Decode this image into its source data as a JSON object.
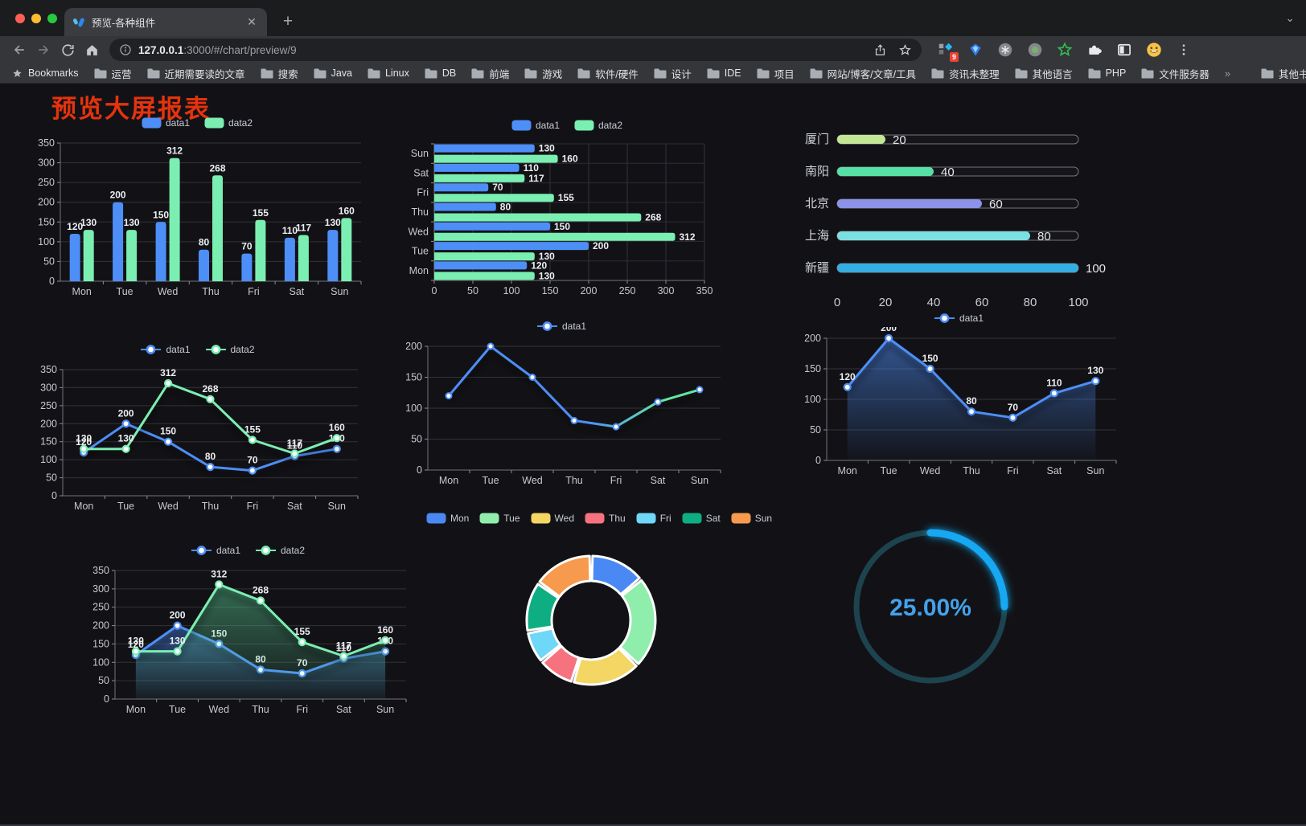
{
  "browser": {
    "tab": {
      "title": "预览-各种组件"
    },
    "address": {
      "host": "127.0.0.1",
      "path": ":3000/#/chart/preview/9"
    },
    "bookmarks_bar": {
      "label": "Bookmarks",
      "folders": [
        "运营",
        "近期需要读的文章",
        "搜索",
        "Java",
        "Linux",
        "DB",
        "前端",
        "游戏",
        "软件/硬件",
        "设计",
        "IDE",
        "项目",
        "网站/博客/文章/工具",
        "资讯未整理",
        "其他语言",
        "PHP",
        "文件服务器"
      ],
      "overflow": "»",
      "other": "其他书签"
    },
    "extensions": {
      "badge": "9"
    }
  },
  "page": {
    "title": "预览大屏报表",
    "title_color": "#e5330d"
  },
  "chart_data": [
    {
      "type": "bar",
      "categories": [
        "Mon",
        "Tue",
        "Wed",
        "Thu",
        "Fri",
        "Sat",
        "Sun"
      ],
      "series": [
        {
          "name": "data1",
          "color": "#4e8ef7",
          "values": [
            120,
            200,
            150,
            80,
            70,
            110,
            130
          ]
        },
        {
          "name": "data2",
          "color": "#7beeb2",
          "values": [
            130,
            130,
            312,
            268,
            155,
            117,
            160
          ]
        }
      ],
      "ylim": [
        0,
        350
      ],
      "ytick_step": 50,
      "show_labels": true,
      "legend_position": "top",
      "grid": true
    },
    {
      "type": "horizontal_bar",
      "categories": [
        "Mon",
        "Tue",
        "Wed",
        "Thu",
        "Fri",
        "Sat",
        "Sun"
      ],
      "series": [
        {
          "name": "data1",
          "color": "#4e8ef7",
          "values": [
            120,
            200,
            150,
            80,
            70,
            110,
            130
          ]
        },
        {
          "name": "data2",
          "color": "#7beeb2",
          "values": [
            130,
            130,
            312,
            268,
            155,
            117,
            160
          ]
        }
      ],
      "xlim": [
        0,
        350
      ],
      "xtick_step": 50,
      "show_labels": true,
      "legend_position": "top",
      "grid": true
    },
    {
      "type": "progress_bars",
      "max": 100,
      "xticks": [
        0,
        20,
        40,
        60,
        80,
        100
      ],
      "items": [
        {
          "label": "厦门",
          "value": 20,
          "color": "#c4e796"
        },
        {
          "label": "南阳",
          "value": 40,
          "color": "#57e0a5"
        },
        {
          "label": "北京",
          "value": 60,
          "color": "#8b92e8"
        },
        {
          "label": "上海",
          "value": 80,
          "color": "#7cdfe2"
        },
        {
          "label": "新疆",
          "value": 100,
          "color": "#36aee2"
        }
      ]
    },
    {
      "type": "line",
      "categories": [
        "Mon",
        "Tue",
        "Wed",
        "Thu",
        "Fri",
        "Sat",
        "Sun"
      ],
      "series": [
        {
          "name": "data1",
          "color": "#4e8ef7",
          "values": [
            120,
            200,
            150,
            80,
            70,
            110,
            130
          ]
        },
        {
          "name": "data2",
          "color": "#7beeb2",
          "values": [
            130,
            130,
            312,
            268,
            155,
            117,
            160
          ]
        }
      ],
      "ylim": [
        0,
        350
      ],
      "ytick_step": 50,
      "show_labels": true,
      "legend_position": "top",
      "grid": true
    },
    {
      "type": "line_gradient",
      "categories": [
        "Mon",
        "Tue",
        "Wed",
        "Thu",
        "Fri",
        "Sat",
        "Sun"
      ],
      "series": [
        {
          "name": "data1",
          "color": "#4e8ef7",
          "values": [
            120,
            200,
            150,
            80,
            70,
            110,
            130
          ]
        }
      ],
      "gradient": [
        "#4e8ef7",
        "#63e6a4"
      ],
      "ylim": [
        0,
        200
      ],
      "ytick_step": 50,
      "show_labels": false,
      "legend_position": "top",
      "grid": true
    },
    {
      "type": "area",
      "categories": [
        "Mon",
        "Tue",
        "Wed",
        "Thu",
        "Fri",
        "Sat",
        "Sun"
      ],
      "series": [
        {
          "name": "data1",
          "color": "#4e8ef7",
          "values": [
            120,
            200,
            150,
            80,
            70,
            110,
            130
          ],
          "area": [
            "rgba(78,142,247,0.55)",
            "rgba(78,142,247,0.02)"
          ]
        }
      ],
      "ylim": [
        0,
        200
      ],
      "ytick_step": 50,
      "show_labels": true,
      "legend_position": "top",
      "grid": true
    },
    {
      "type": "area",
      "categories": [
        "Mon",
        "Tue",
        "Wed",
        "Thu",
        "Fri",
        "Sat",
        "Sun"
      ],
      "series": [
        {
          "name": "data1",
          "color": "#4e8ef7",
          "values": [
            120,
            200,
            150,
            80,
            70,
            110,
            130
          ],
          "area": [
            "rgba(78,142,247,0.5)",
            "rgba(78,142,247,0.03)"
          ]
        },
        {
          "name": "data2",
          "color": "#7beeb2",
          "values": [
            130,
            130,
            312,
            268,
            155,
            117,
            160
          ],
          "area": [
            "rgba(96,220,160,0.45)",
            "rgba(96,220,160,0.03)"
          ]
        }
      ],
      "ylim": [
        0,
        350
      ],
      "ytick_step": 50,
      "show_labels": true,
      "legend_position": "top",
      "grid": true
    },
    {
      "type": "pie",
      "legend_position": "top",
      "items": [
        {
          "label": "Mon",
          "value": 120,
          "color": "#4a89f3"
        },
        {
          "label": "Tue",
          "value": 200,
          "color": "#8feeab"
        },
        {
          "label": "Wed",
          "value": 150,
          "color": "#f3d663"
        },
        {
          "label": "Thu",
          "value": 80,
          "color": "#f7727f"
        },
        {
          "label": "Fri",
          "value": 70,
          "color": "#6fd7f7"
        },
        {
          "label": "Sat",
          "value": 110,
          "color": "#0fae82"
        },
        {
          "label": "Sun",
          "value": 130,
          "color": "#f89a4d"
        }
      ]
    },
    {
      "type": "gauge",
      "value": 25,
      "display": "25.00%",
      "color": "#16a8f2",
      "track_color": "#1d434f",
      "text_color": "#44a1ea"
    }
  ]
}
